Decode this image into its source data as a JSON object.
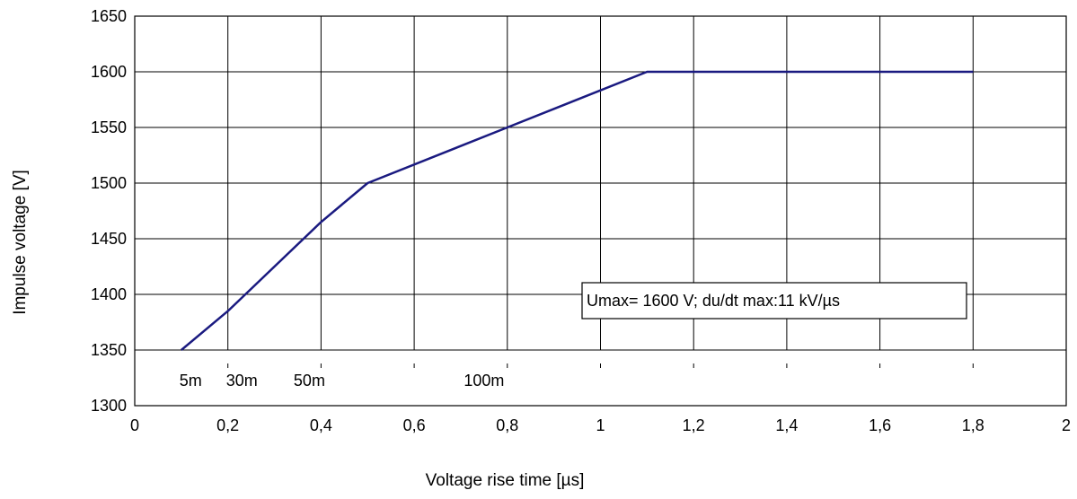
{
  "chart_data": {
    "type": "line",
    "title": "",
    "xlabel": "Voltage rise time [µs]",
    "ylabel": "Impulse voltage [V]",
    "xlim": [
      0,
      2
    ],
    "ylim": [
      1300,
      1650
    ],
    "x_ticks": [
      0,
      0.2,
      0.4,
      0.6,
      0.8,
      1,
      1.2,
      1.4,
      1.6,
      1.8,
      2
    ],
    "x_tick_labels": [
      "0",
      "0,2",
      "0,4",
      "0,6",
      "0,8",
      "1",
      "1,2",
      "1,4",
      "1,6",
      "1,8",
      "2"
    ],
    "y_ticks": [
      1300,
      1350,
      1400,
      1450,
      1500,
      1550,
      1600,
      1650
    ],
    "y_tick_labels": [
      "1300",
      "1350",
      "1400",
      "1450",
      "1500",
      "1550",
      "1600",
      "1650"
    ],
    "grid": true,
    "series": [
      {
        "color": "#1a1a80",
        "x": [
          0.1,
          0.2,
          0.3,
          0.4,
          0.5,
          0.8,
          1.1,
          1.8
        ],
        "y": [
          1350,
          1385,
          1425,
          1465,
          1500,
          1550,
          1600,
          1600
        ]
      }
    ],
    "annotations": [
      {
        "text": "Umax= 1600 V; du/dt max:11 kV/µs",
        "x": 1.0,
        "y": 1395
      }
    ],
    "inner_labels": [
      {
        "text": "5m",
        "x": 0.12
      },
      {
        "text": "30m",
        "x": 0.23
      },
      {
        "text": "50m",
        "x": 0.375
      },
      {
        "text": "100m",
        "x": 0.75
      }
    ]
  }
}
